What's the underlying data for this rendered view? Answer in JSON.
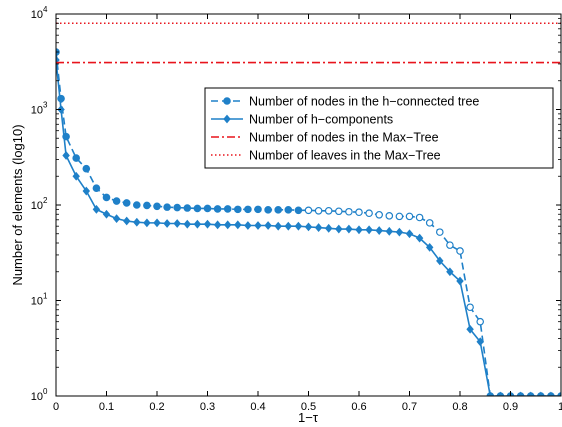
{
  "chart_data": {
    "type": "line",
    "title": "",
    "xlabel": "1−τ",
    "ylabel": "Number of elements (log10)",
    "xlim": [
      0,
      1
    ],
    "ylim": [
      1,
      10000
    ],
    "yscale": "log",
    "grid": false,
    "legend_position": "top-right",
    "x_ticks": [
      "0",
      "0.1",
      "0.2",
      "0.3",
      "0.4",
      "0.5",
      "0.6",
      "0.7",
      "0.8",
      "0.9",
      "1"
    ],
    "y_ticks": [
      {
        "base": "10",
        "exp": "0"
      },
      {
        "base": "10",
        "exp": "1"
      },
      {
        "base": "10",
        "exp": "2"
      },
      {
        "base": "10",
        "exp": "3"
      },
      {
        "base": "10",
        "exp": "4"
      }
    ],
    "series": [
      {
        "name": "Number of nodes in the h−connected tree",
        "color": "#1f80c8",
        "style": "dashed",
        "marker": "circle",
        "x": [
          0,
          0.01,
          0.02,
          0.04,
          0.06,
          0.08,
          0.1,
          0.12,
          0.14,
          0.16,
          0.18,
          0.2,
          0.22,
          0.24,
          0.26,
          0.28,
          0.3,
          0.32,
          0.34,
          0.36,
          0.38,
          0.4,
          0.42,
          0.44,
          0.46,
          0.48,
          0.5,
          0.52,
          0.54,
          0.56,
          0.58,
          0.6,
          0.62,
          0.64,
          0.66,
          0.68,
          0.7,
          0.72,
          0.74,
          0.76,
          0.78,
          0.8,
          0.82,
          0.84,
          0.86,
          0.88,
          0.9,
          0.92,
          0.94,
          0.96,
          0.98,
          1.0
        ],
        "values": [
          4000,
          1300,
          520,
          310,
          240,
          150,
          120,
          110,
          105,
          100,
          99,
          97,
          95,
          94,
          93,
          92,
          92,
          91,
          91,
          90,
          90,
          90,
          89,
          89,
          89,
          88,
          88,
          87,
          87,
          86,
          85,
          84,
          82,
          79,
          77,
          76,
          76,
          74,
          65,
          52,
          38,
          33,
          8.5,
          6,
          1,
          1,
          1,
          1,
          1,
          1,
          1,
          1
        ],
        "hollow_from_x": 0.5
      },
      {
        "name": "Number of h−components",
        "color": "#1f80c8",
        "style": "solid",
        "marker": "diamond",
        "x": [
          0,
          0.01,
          0.02,
          0.04,
          0.06,
          0.08,
          0.1,
          0.12,
          0.14,
          0.16,
          0.18,
          0.2,
          0.22,
          0.24,
          0.26,
          0.28,
          0.3,
          0.32,
          0.34,
          0.36,
          0.38,
          0.4,
          0.42,
          0.44,
          0.46,
          0.48,
          0.5,
          0.52,
          0.54,
          0.56,
          0.58,
          0.6,
          0.62,
          0.64,
          0.66,
          0.68,
          0.7,
          0.72,
          0.74,
          0.76,
          0.78,
          0.8,
          0.82,
          0.84,
          0.86,
          0.88,
          0.9,
          0.92,
          0.94,
          0.96,
          0.98,
          1.0
        ],
        "values": [
          3300,
          1000,
          330,
          200,
          140,
          90,
          80,
          72,
          68,
          66,
          65,
          65,
          64,
          64,
          63,
          63,
          63,
          62,
          62,
          62,
          61,
          61,
          61,
          60,
          60,
          60,
          59,
          58,
          57,
          56,
          56,
          55,
          55,
          54,
          53,
          52,
          50,
          45,
          36,
          26,
          20,
          16,
          5,
          3.7,
          1,
          1,
          1,
          1,
          1,
          1,
          1,
          1
        ]
      },
      {
        "name": "Number of nodes in the Max−Tree",
        "color": "#e8141c",
        "style": "dashdot",
        "marker": "none",
        "x": [
          0,
          1
        ],
        "values": [
          3100,
          3100
        ]
      },
      {
        "name": "Number of leaves in the Max−Tree",
        "color": "#e8141c",
        "style": "dotted",
        "marker": "none",
        "x": [
          0,
          1
        ],
        "values": [
          8000,
          8000
        ]
      }
    ]
  }
}
